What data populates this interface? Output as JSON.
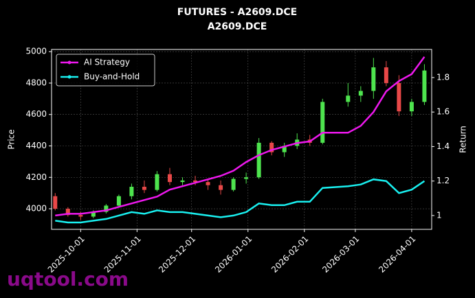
{
  "chart_data": {
    "type": "candlestick",
    "title": "FUTURES - A2609.DCE",
    "subtitle": "A2609.DCE",
    "ylabel": "Price",
    "y2label": "Return",
    "watermark": "uqtool.com",
    "x": [
      "2025-09-17",
      "2025-09-24",
      "2025-10-01",
      "2025-10-08",
      "2025-10-15",
      "2025-10-22",
      "2025-10-29",
      "2025-11-05",
      "2025-11-12",
      "2025-11-19",
      "2025-11-26",
      "2025-12-03",
      "2025-12-10",
      "2025-12-17",
      "2025-12-24",
      "2025-12-31",
      "2026-01-07",
      "2026-01-14",
      "2026-01-21",
      "2026-01-28",
      "2026-02-04",
      "2026-02-11",
      "2026-02-25",
      "2026-03-04",
      "2026-03-11",
      "2026-03-18",
      "2026-03-25",
      "2026-04-01",
      "2026-04-08"
    ],
    "open": [
      4080,
      4000,
      3960,
      3950,
      3980,
      4020,
      4080,
      4140,
      4120,
      4220,
      4170,
      4180,
      4170,
      4150,
      4120,
      4190,
      4200,
      4420,
      4360,
      4400,
      4440,
      4420,
      4680,
      4720,
      4750,
      4900,
      4800,
      4620,
      4680
    ],
    "high": [
      4100,
      4010,
      3980,
      3990,
      4030,
      4090,
      4160,
      4180,
      4240,
      4260,
      4200,
      4210,
      4190,
      4180,
      4200,
      4230,
      4450,
      4430,
      4420,
      4480,
      4470,
      4700,
      4800,
      4780,
      4960,
      4940,
      4850,
      4700,
      4920
    ],
    "low": [
      3990,
      3950,
      3930,
      3940,
      3970,
      4010,
      4060,
      4100,
      4110,
      4150,
      4150,
      4150,
      4120,
      4090,
      4110,
      4160,
      4190,
      4340,
      4330,
      4380,
      4400,
      4410,
      4650,
      4680,
      4700,
      4780,
      4590,
      4590,
      4660
    ],
    "close": [
      4000,
      3960,
      3950,
      3980,
      4020,
      4080,
      4140,
      4120,
      4220,
      4170,
      4180,
      4170,
      4150,
      4120,
      4190,
      4200,
      4420,
      4360,
      4400,
      4440,
      4420,
      4680,
      4720,
      4750,
      4900,
      4800,
      4620,
      4680,
      4880
    ],
    "up_color": "#4ee44e",
    "down_color": "#e84848",
    "series": [
      {
        "name": "AI Strategy",
        "color": "#ee18ee",
        "axis": "y2",
        "values": [
          1.0,
          1.01,
          1.01,
          1.02,
          1.03,
          1.05,
          1.07,
          1.09,
          1.11,
          1.15,
          1.17,
          1.19,
          1.21,
          1.23,
          1.26,
          1.31,
          1.35,
          1.38,
          1.4,
          1.42,
          1.43,
          1.48,
          1.48,
          1.52,
          1.6,
          1.72,
          1.78,
          1.82,
          1.92
        ]
      },
      {
        "name": "Buy-and-Hold",
        "color": "#19f0f0",
        "axis": "y2",
        "values": [
          0.97,
          0.96,
          0.96,
          0.97,
          0.98,
          1.0,
          1.02,
          1.01,
          1.03,
          1.02,
          1.02,
          1.01,
          1.0,
          0.99,
          1.0,
          1.02,
          1.07,
          1.06,
          1.06,
          1.08,
          1.08,
          1.16,
          1.17,
          1.18,
          1.21,
          1.2,
          1.13,
          1.15,
          1.2
        ]
      }
    ],
    "xlim": [
      "2025-09-15",
      "2026-04-12"
    ],
    "xticks": [
      "2025-10-01",
      "2025-11-01",
      "2025-12-01",
      "2026-01-01",
      "2026-02-01",
      "2026-03-01",
      "2026-04-01"
    ],
    "ylim": [
      3869,
      5014
    ],
    "yticks": [
      4000,
      4200,
      4400,
      4600,
      4800,
      5000
    ],
    "y2lim": [
      0.92,
      1.963
    ],
    "y2ticks": [
      1.0,
      1.2,
      1.4,
      1.6,
      1.8
    ],
    "grid": true,
    "legend": "upper left"
  }
}
